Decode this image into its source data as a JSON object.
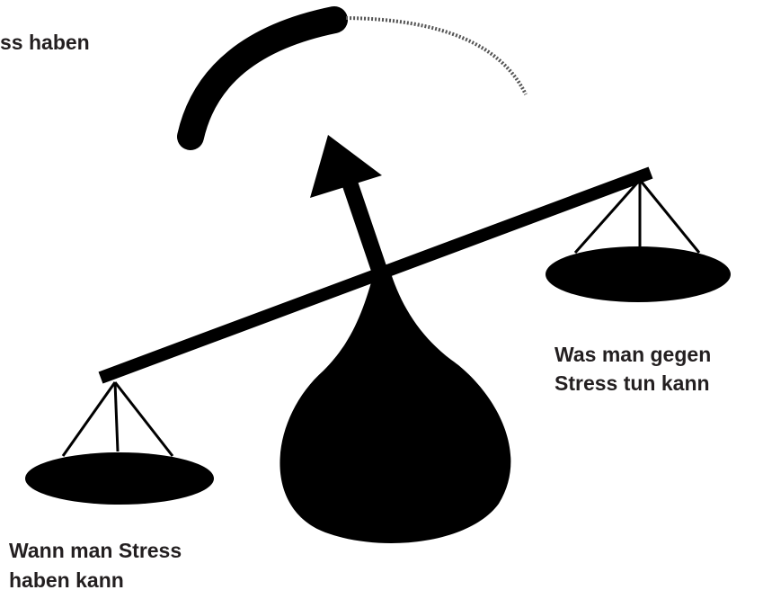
{
  "labels": {
    "top": "ss haben",
    "right": [
      "Was man gegen",
      "Stress tun kann"
    ],
    "left": [
      "Wann man Stress",
      "haben kann"
    ]
  }
}
